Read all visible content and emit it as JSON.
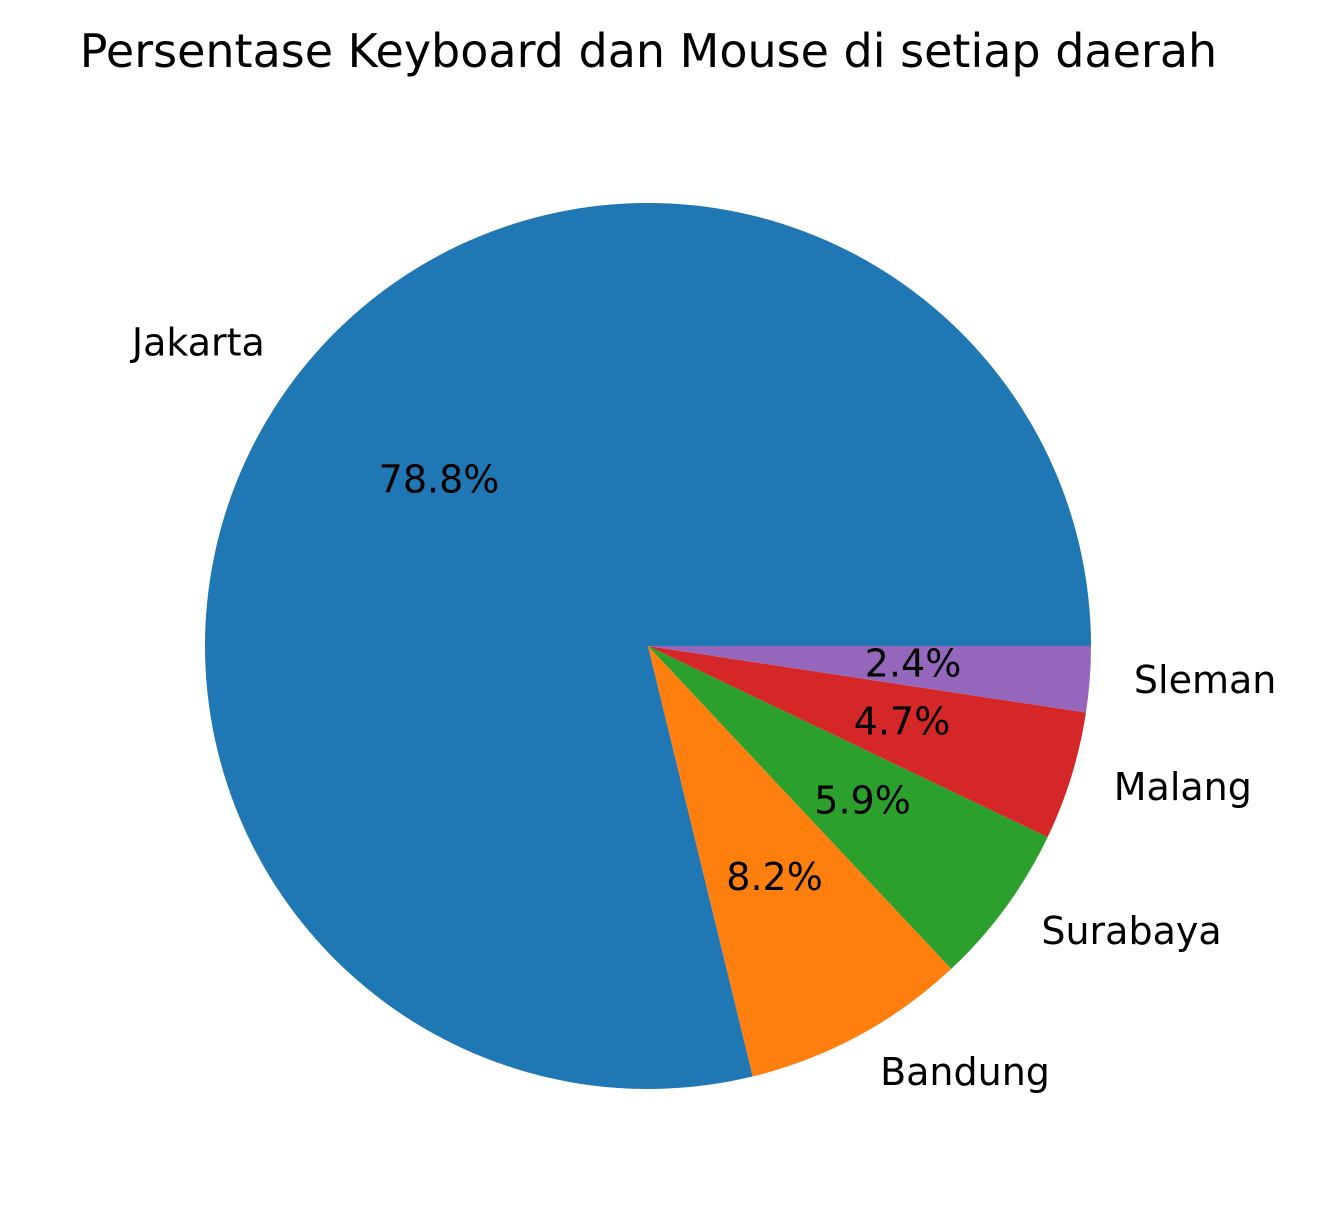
{
  "chart_data": {
    "type": "pie",
    "title": "Persentase Keyboard dan Mouse di setiap daerah",
    "categories": [
      "Jakarta",
      "Bandung",
      "Surabaya",
      "Malang",
      "Sleman"
    ],
    "values": [
      78.8,
      8.2,
      5.9,
      4.7,
      2.4
    ],
    "value_labels": [
      "78.8%",
      "8.2%",
      "5.9%",
      "4.7%",
      "2.4%"
    ],
    "colors": [
      "#1f77b4",
      "#ff7f0e",
      "#2ca02c",
      "#d62728",
      "#9467bd"
    ],
    "start_angle": 0,
    "direction": "counterclockwise",
    "legend": "none"
  }
}
